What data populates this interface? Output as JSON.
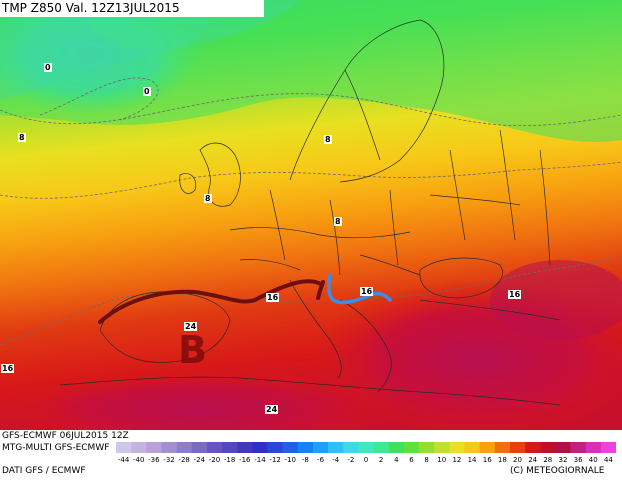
{
  "title": "TMP Z850 Val. 12Z13JUL2015",
  "footer": {
    "model_run": "GFS-ECMWF 06JUL2015 12Z",
    "model_name": "MTG-MULTI GFS-ECMWF",
    "data_source": "DATI GFS / ECMWF",
    "copyright": "(C) METEOGIORNALE"
  },
  "pressure_center": "B",
  "isotherm_labels": [
    {
      "id": "iso-0-a",
      "text": "0"
    },
    {
      "id": "iso-0-b",
      "text": "0"
    },
    {
      "id": "iso-8-a",
      "text": "8"
    },
    {
      "id": "iso-8-b",
      "text": "8"
    },
    {
      "id": "iso-8-c",
      "text": "8"
    },
    {
      "id": "iso-8-d",
      "text": "8"
    },
    {
      "id": "iso-16-a",
      "text": "16"
    },
    {
      "id": "iso-16-b",
      "text": "16"
    },
    {
      "id": "iso-16-c",
      "text": "16"
    },
    {
      "id": "iso-16-d",
      "text": "16"
    },
    {
      "id": "iso-24-a",
      "text": "24"
    },
    {
      "id": "iso-24-b",
      "text": "24"
    }
  ],
  "scale": {
    "values": [
      "-44",
      "-40",
      "-36",
      "-32",
      "-28",
      "-24",
      "-20",
      "-18",
      "-16",
      "-14",
      "-12",
      "-10",
      "-8",
      "-6",
      "-4",
      "-2",
      "0",
      "2",
      "4",
      "6",
      "8",
      "10",
      "12",
      "14",
      "16",
      "18",
      "20",
      "24",
      "28",
      "32",
      "36",
      "40",
      "44"
    ],
    "colors": [
      "#cfc6e8",
      "#c6b4e0",
      "#b9a2da",
      "#a48ed2",
      "#8e7ccc",
      "#7a6ac6",
      "#6656c0",
      "#5448bc",
      "#4238b8",
      "#3030c8",
      "#2848d8",
      "#2060e8",
      "#1880f4",
      "#20a0f8",
      "#30c0f4",
      "#40d8e8",
      "#40e8c0",
      "#40e890",
      "#40e060",
      "#60e040",
      "#90e030",
      "#c0e030",
      "#e8e020",
      "#f8c818",
      "#f8a010",
      "#f07010",
      "#e84010",
      "#d81818",
      "#c01028",
      "#b01048",
      "#c02080",
      "#d830b8",
      "#f040e0"
    ],
    "colors_note": ""
  },
  "fronts": {
    "warm_color": "#6e0f0f",
    "cold_color": "#3a8ee8"
  }
}
